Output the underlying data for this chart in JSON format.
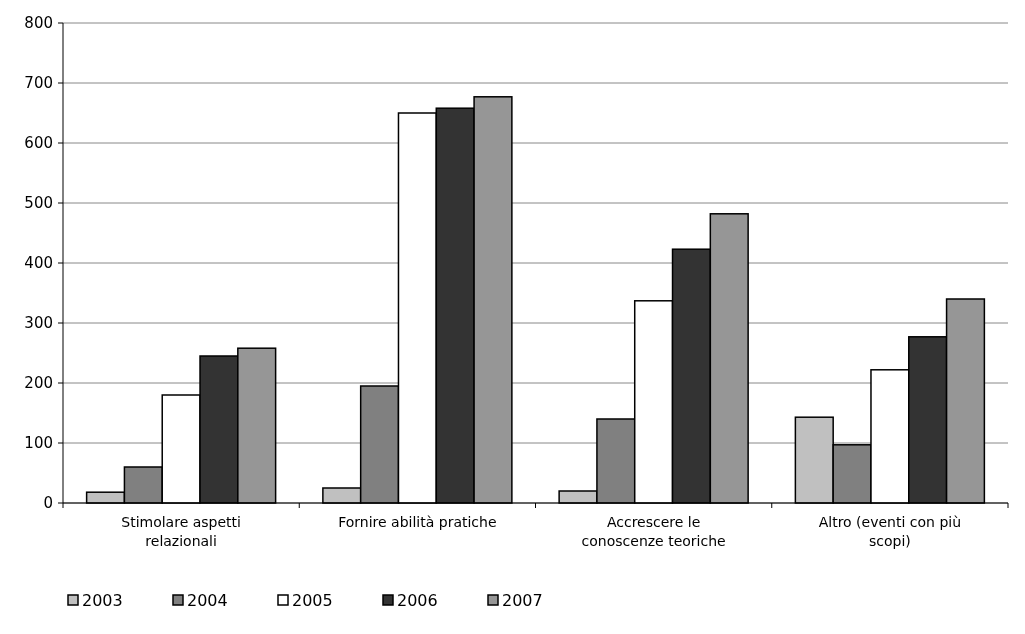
{
  "chart_data": {
    "type": "bar",
    "categories": [
      "Stimolare aspetti relazionali",
      "Fornire abilità pratiche",
      "Accrescere le conoscenze teoriche",
      "Altro (eventi con più scopi)"
    ],
    "series": [
      {
        "name": "2003",
        "color": "#c0c0c0",
        "values": [
          18,
          25,
          20,
          143
        ]
      },
      {
        "name": "2004",
        "color": "#808080",
        "values": [
          60,
          195,
          140,
          97
        ]
      },
      {
        "name": "2005",
        "color": "#ffffff",
        "values": [
          180,
          650,
          337,
          222
        ]
      },
      {
        "name": "2006",
        "color": "#333333",
        "values": [
          245,
          658,
          423,
          277
        ]
      },
      {
        "name": "2007",
        "color": "#969696",
        "values": [
          258,
          677,
          482,
          340
        ]
      }
    ],
    "ylim": [
      0,
      800
    ],
    "yticks": [
      0,
      100,
      200,
      300,
      400,
      500,
      600,
      700,
      800
    ],
    "grid": "y",
    "legend": "bottom"
  }
}
